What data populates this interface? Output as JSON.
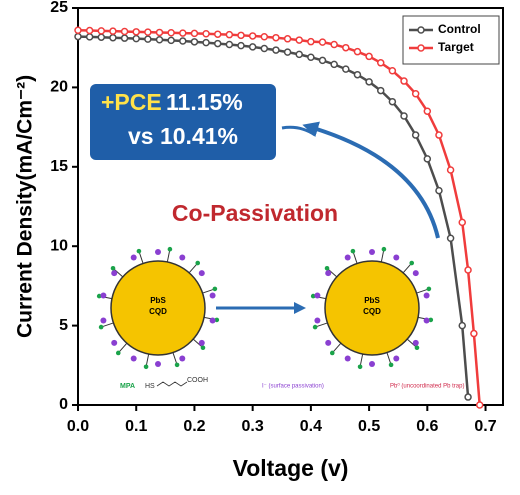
{
  "chart_data": {
    "type": "line",
    "xlabel": "Voltage (v)",
    "ylabel": "Current Density(mA/Cm⁻²)",
    "x": [
      0,
      0.02,
      0.04,
      0.06,
      0.08,
      0.1,
      0.12,
      0.14,
      0.16,
      0.18,
      0.2,
      0.22,
      0.24,
      0.26,
      0.28,
      0.3,
      0.32,
      0.34,
      0.36,
      0.38,
      0.4,
      0.42,
      0.44,
      0.46,
      0.48,
      0.5,
      0.52,
      0.54,
      0.56,
      0.58,
      0.6,
      0.62,
      0.64,
      0.66,
      0.67,
      0.68,
      0.69
    ],
    "series": [
      {
        "name": "Control",
        "color": "#4d4d4d",
        "values": [
          23.2,
          23.18,
          23.16,
          23.13,
          23.1,
          23.07,
          23.04,
          23.0,
          22.96,
          22.92,
          22.87,
          22.82,
          22.76,
          22.7,
          22.63,
          22.55,
          22.45,
          22.35,
          22.22,
          22.08,
          21.9,
          21.7,
          21.45,
          21.15,
          20.8,
          20.35,
          19.8,
          19.1,
          18.2,
          17.0,
          15.5,
          13.5,
          10.5,
          5.0,
          0.5,
          null,
          null
        ]
      },
      {
        "name": "Target",
        "color": "#f03c3c",
        "values": [
          23.6,
          23.58,
          23.56,
          23.54,
          23.52,
          23.5,
          23.48,
          23.46,
          23.44,
          23.42,
          23.4,
          23.38,
          23.35,
          23.32,
          23.28,
          23.24,
          23.19,
          23.13,
          23.06,
          22.98,
          22.88,
          22.85,
          22.7,
          22.5,
          22.25,
          21.95,
          21.55,
          21.05,
          20.4,
          19.6,
          18.5,
          17.0,
          14.8,
          11.5,
          8.5,
          4.5,
          0
        ]
      }
    ],
    "xlim": [
      0,
      0.73
    ],
    "ylim": [
      0,
      25
    ],
    "xticks": [
      {
        "value": 0,
        "label": "0.0"
      },
      0.1,
      0.2,
      0.3,
      0.4,
      0.5,
      0.6,
      0.7
    ],
    "yticks": [
      0,
      5,
      10,
      15,
      20,
      25
    ],
    "legend": "upper right",
    "annotations": [
      "+PCE",
      "11.15%",
      "vs 10.41%",
      "Co-Passivation",
      "PbS",
      "CQD",
      "PbS",
      "CQD",
      "MPA",
      "HS",
      "COOH",
      "I⁻ (surface passivation)",
      "Pb⁰ (uncoordinated Pb trap)"
    ]
  }
}
